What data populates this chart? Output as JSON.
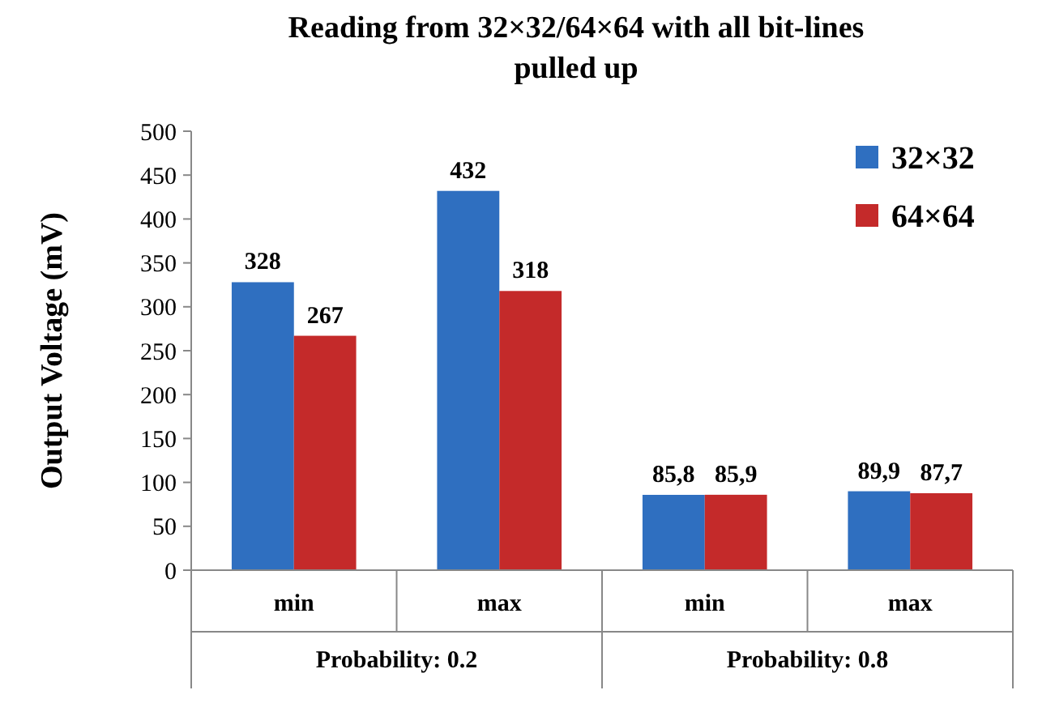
{
  "chart_data": {
    "type": "bar",
    "title": "Reading from 32×32/64×64 with all bit-lines pulled up",
    "ylabel": "Output Voltage (mV)",
    "categories": [
      "min",
      "max",
      "min",
      "max"
    ],
    "series": [
      {
        "name": "32×32",
        "color": "#2f6fc0",
        "values": [
          328,
          432,
          85.8,
          89.9
        ],
        "value_labels": [
          "328",
          "432",
          "85,8",
          "89,9"
        ]
      },
      {
        "name": "64×64",
        "color": "#c42a2a",
        "values": [
          267,
          318,
          85.9,
          87.7
        ],
        "value_labels": [
          "267",
          "318",
          "85,9",
          "87,7"
        ]
      }
    ],
    "annotations": [
      "Probability: 0.2",
      "Probability: 0.8"
    ],
    "ylim": [
      0,
      500
    ],
    "yticks": [
      0,
      50,
      100,
      150,
      200,
      250,
      300,
      350,
      400,
      450,
      500
    ],
    "grid": false,
    "legend": "top right"
  }
}
